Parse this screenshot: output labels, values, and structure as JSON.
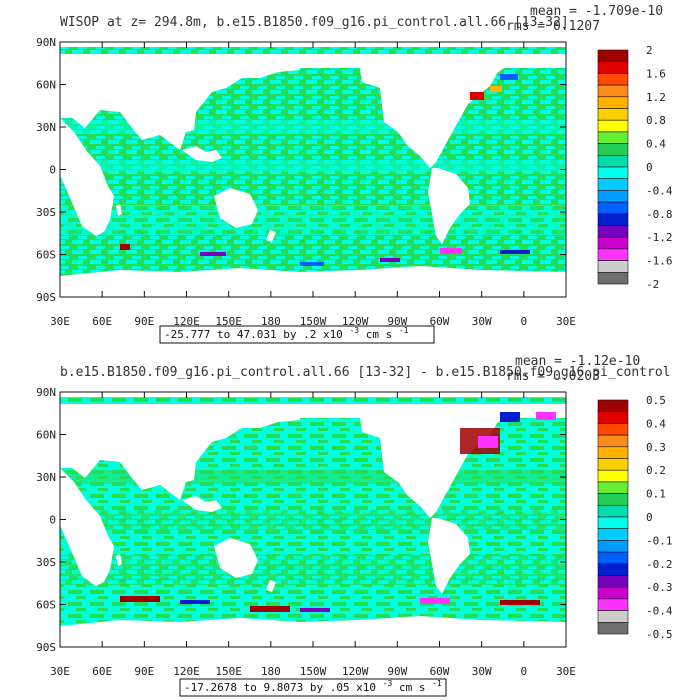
{
  "chart_data": [
    {
      "type": "heatmap",
      "title": "WISOP at z= 294.8m, b.e15.B1850.f09_g16.pi_control.all.66 [13-32]",
      "stats_mean": "mean = -1.709e-10",
      "stats_rms": "rms = 0.1207",
      "range_label": "-25.777 to 47.031 by .2 x10",
      "range_exp": "-3",
      "range_units": " cm s",
      "range_units_exp": "-1",
      "x_ticks": [
        "30E",
        "60E",
        "90E",
        "120E",
        "150E",
        "180",
        "150W",
        "120W",
        "90W",
        "60W",
        "30W",
        "0",
        "30E"
      ],
      "y_ticks": [
        "90N",
        "60N",
        "30N",
        "0",
        "30S",
        "60S",
        "90S"
      ],
      "colorbar_labels": [
        "2",
        "1.6",
        "1.2",
        "0.8",
        "0.4",
        "0",
        "-0.4",
        "-0.8",
        "-1.2",
        "-1.6",
        "-2"
      ],
      "colorbar_colors": [
        "#a00000",
        "#e00000",
        "#ff4a00",
        "#ff8c1a",
        "#ffb000",
        "#ffd000",
        "#ffff00",
        "#66ee33",
        "#22cc55",
        "#00ddaa",
        "#00ffee",
        "#00ccff",
        "#009cff",
        "#0060ff",
        "#0020d0",
        "#7a00c0",
        "#cc00cc",
        "#ff33ff",
        "#cccccc",
        "#6e6e6e"
      ],
      "stats": {
        "mean": -1.709e-10,
        "rms": 0.1207,
        "min": -25.777,
        "max": 47.031,
        "interval": 0.2
      }
    },
    {
      "type": "heatmap",
      "title": "b.e15.B1850.f09_g16.pi_control.all.66 [13-32] - b.e15.B1850.f09_g16.pi_control",
      "stats_mean": "mean = -1.12e-10",
      "stats_rms": "rms = 0.0203",
      "range_label": "-17.2678 to 9.8073 by .05 x10",
      "range_exp": "-3",
      "range_units": " cm s",
      "range_units_exp": "-1",
      "x_ticks": [
        "30E",
        "60E",
        "90E",
        "120E",
        "150E",
        "180",
        "150W",
        "120W",
        "90W",
        "60W",
        "30W",
        "0",
        "30E"
      ],
      "y_ticks": [
        "90N",
        "60N",
        "30N",
        "0",
        "30S",
        "60S",
        "90S"
      ],
      "colorbar_labels": [
        "0.5",
        "0.4",
        "0.3",
        "0.2",
        "0.1",
        "0",
        "-0.1",
        "-0.2",
        "-0.3",
        "-0.4",
        "-0.5"
      ],
      "colorbar_colors": [
        "#a00000",
        "#e00000",
        "#ff4a00",
        "#ff8c1a",
        "#ffb000",
        "#ffd000",
        "#ffff00",
        "#66ee33",
        "#22cc55",
        "#00ddaa",
        "#00ffee",
        "#00ccff",
        "#009cff",
        "#0060ff",
        "#0020d0",
        "#7a00c0",
        "#cc00cc",
        "#ff33ff",
        "#cccccc",
        "#6e6e6e"
      ],
      "stats": {
        "mean": -1.12e-10,
        "rms": 0.0203,
        "min": -17.2678,
        "max": 9.8073,
        "interval": 0.05
      }
    }
  ],
  "colors": {
    "ocean_positive": "#22dd55",
    "ocean_negative": "#00ffe0",
    "land": "#ffffff"
  }
}
